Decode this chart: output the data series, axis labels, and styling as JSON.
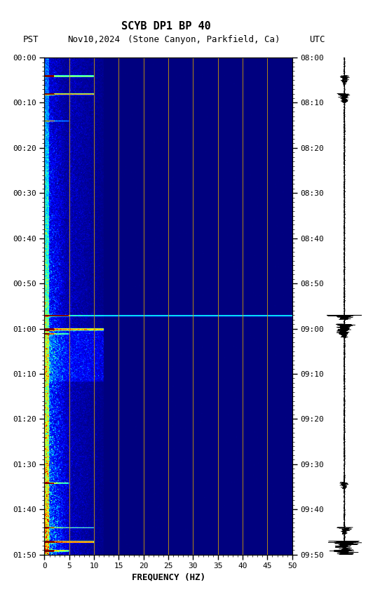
{
  "title_line1": "SCYB DP1 BP 40",
  "title_line2_pst": "PST",
  "title_line2_date": "Nov10,2024",
  "title_line2_loc": "(Stone Canyon, Parkfield, Ca)",
  "title_line2_utc": "UTC",
  "xlabel": "FREQUENCY (HZ)",
  "freq_min": 0,
  "freq_max": 50,
  "pst_yticks": [
    "00:00",
    "00:10",
    "00:20",
    "00:30",
    "00:40",
    "00:50",
    "01:00",
    "01:10",
    "01:20",
    "01:30",
    "01:40",
    "01:50"
  ],
  "utc_yticks": [
    "08:00",
    "08:10",
    "08:20",
    "08:30",
    "08:40",
    "08:50",
    "09:00",
    "09:10",
    "09:20",
    "09:30",
    "09:40",
    "09:50"
  ],
  "xticks": [
    0,
    5,
    10,
    15,
    20,
    25,
    30,
    35,
    40,
    45,
    50
  ],
  "vertical_lines_freq": [
    5,
    10,
    15,
    20,
    25,
    30,
    35,
    40,
    45
  ],
  "n_time": 1120,
  "n_freq": 500,
  "seed": 42,
  "total_minutes": 110
}
